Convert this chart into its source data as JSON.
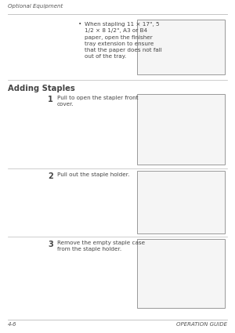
{
  "bg_color": "#ffffff",
  "header_text": "Optional Equipment",
  "footer_left": "4-6",
  "footer_right": "OPERATION GUIDE",
  "section_title": "Adding Staples",
  "bullet_text": "When stapling 11 × 17\", 5\n1/2 × 8 1/2\", A3 or B4\npaper, open the finisher\ntray extension to ensure\nthat the paper does not fall\nout of the tray.",
  "steps": [
    {
      "number": "1",
      "text": "Pull to open the stapler front\ncover."
    },
    {
      "number": "2",
      "text": "Pull out the staple holder."
    },
    {
      "number": "3",
      "text": "Remove the empty staple case\nfrom the staple holder."
    }
  ],
  "text_color": "#444444",
  "header_color": "#555555",
  "box_edge_color": "#999999",
  "box_fill_color": "#f5f5f5",
  "line_color": "#bbbbbb",
  "font_size_header": 5.0,
  "font_size_footer": 5.0,
  "font_size_body": 5.2,
  "font_size_section": 7.2,
  "font_size_step_num": 7.0
}
